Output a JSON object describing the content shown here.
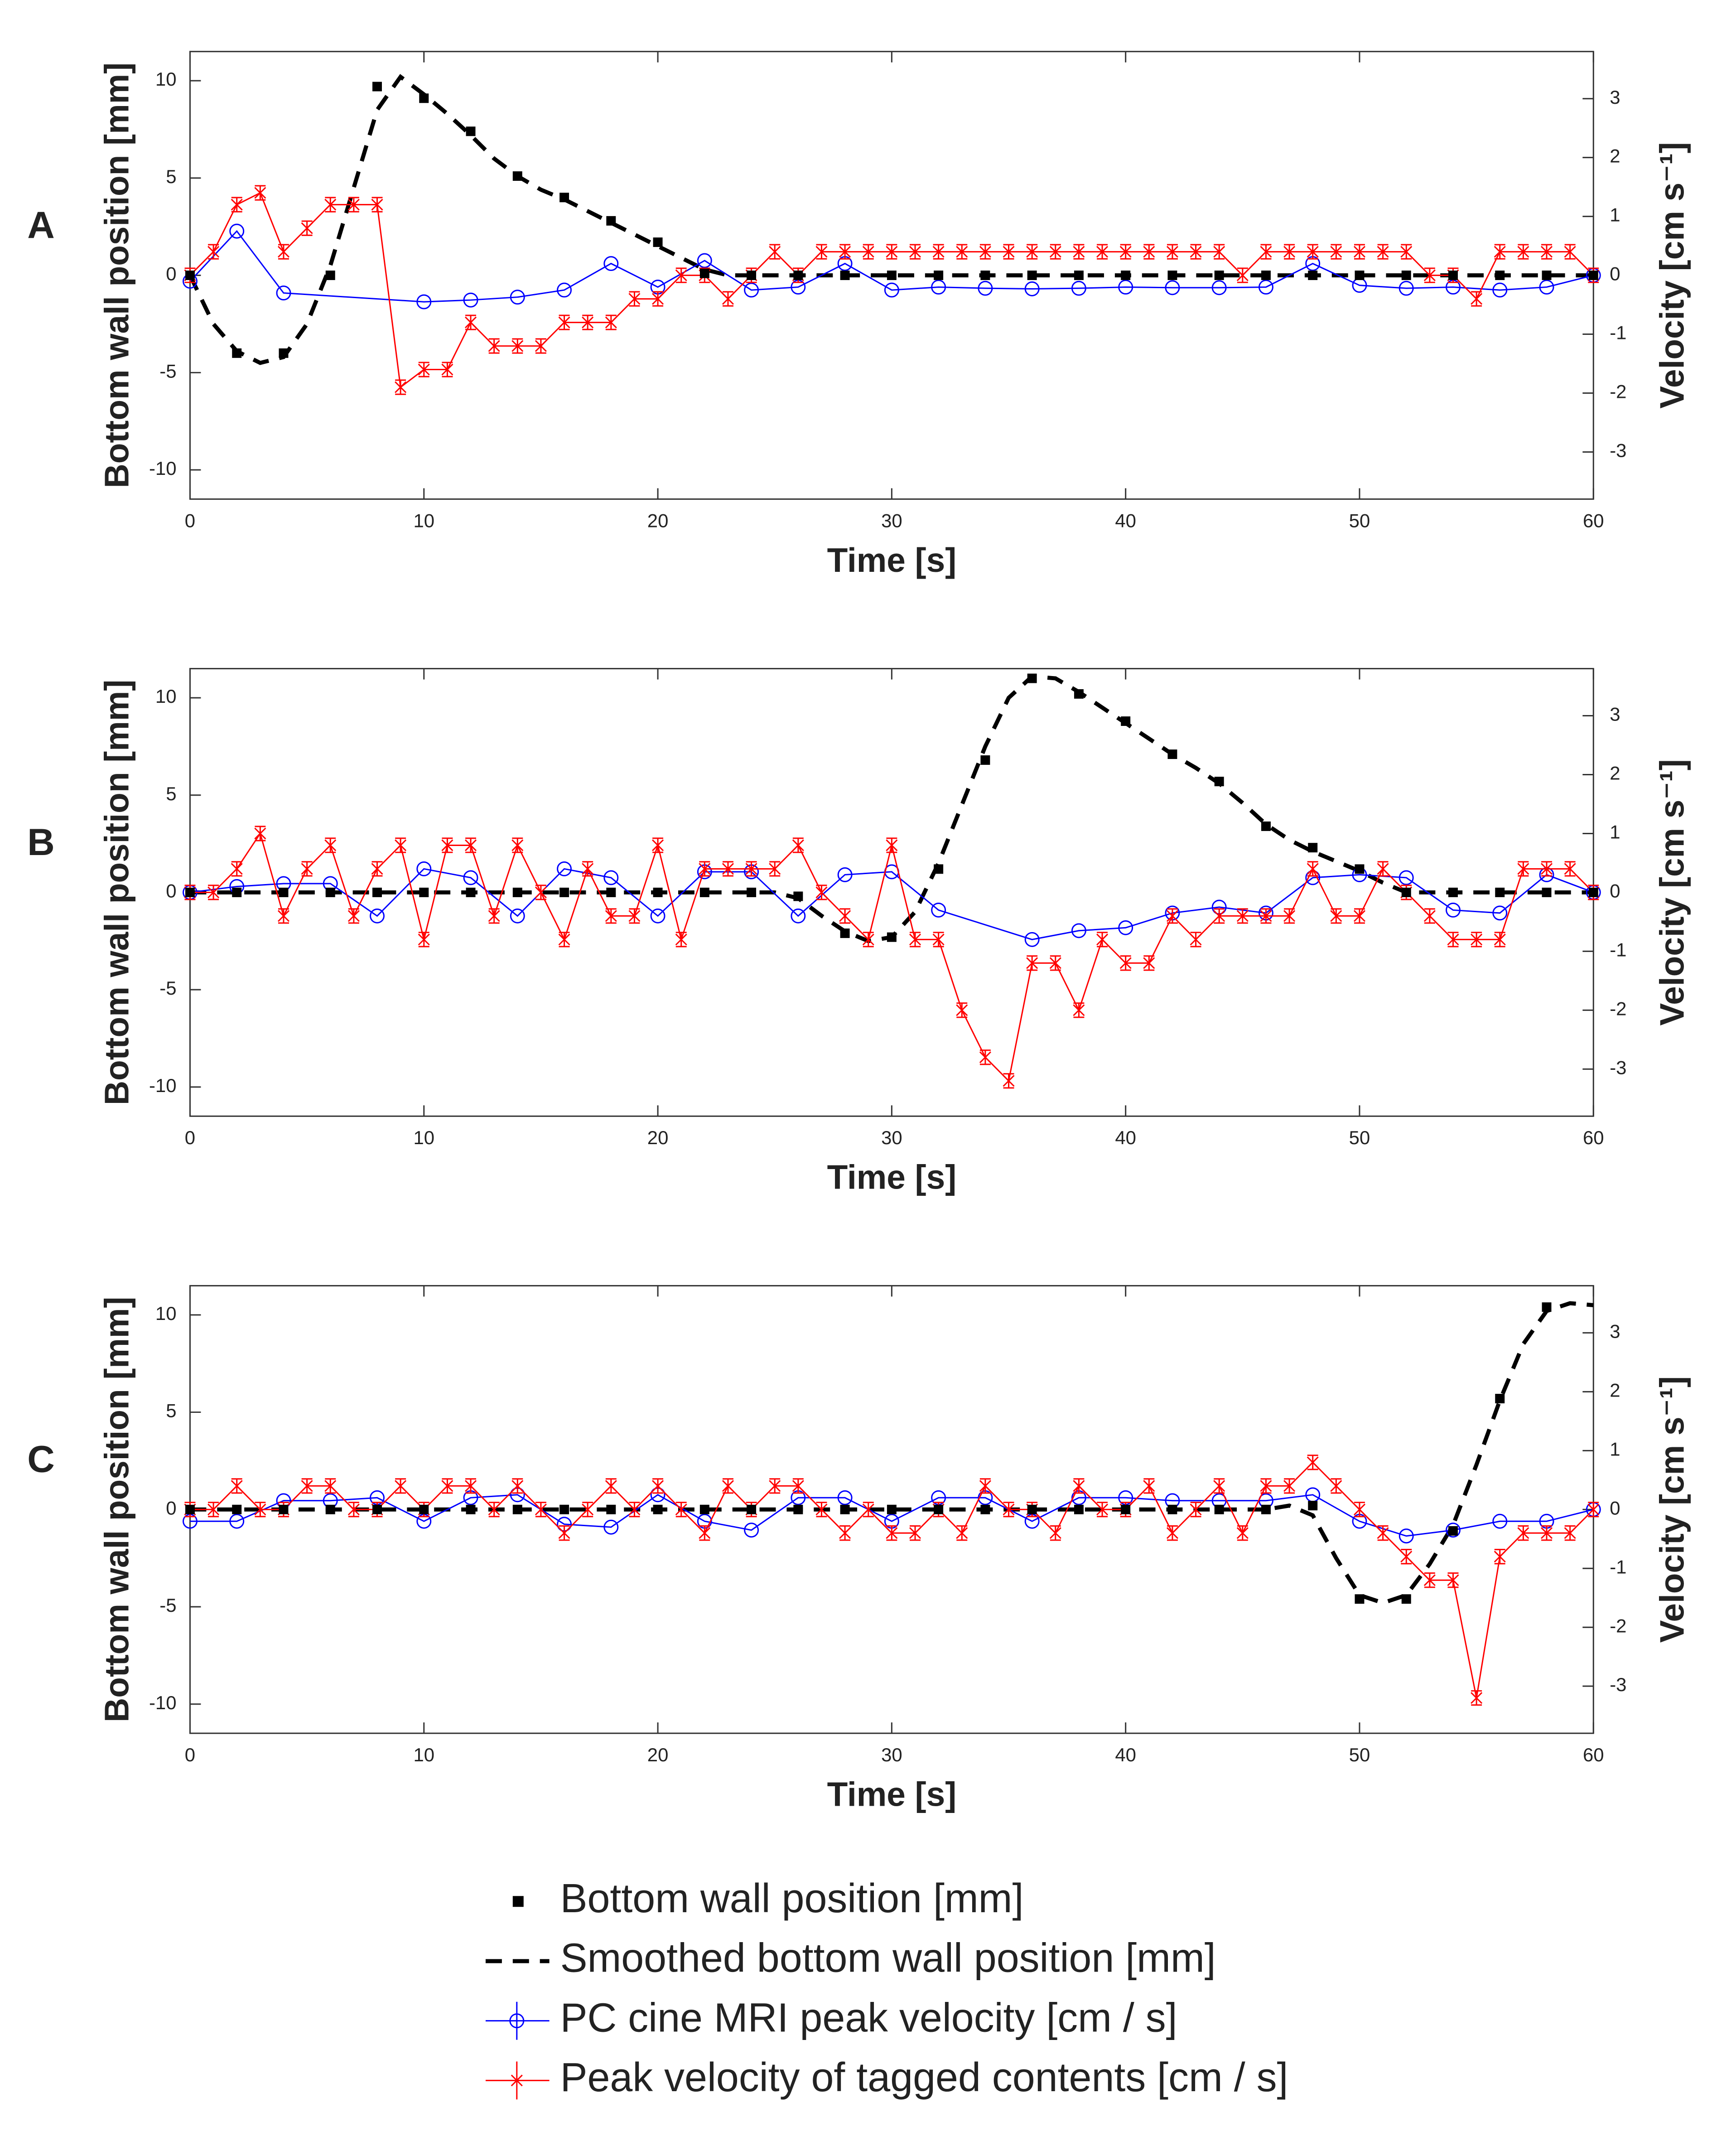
{
  "chart_data": [
    {
      "type": "line",
      "panel": "A",
      "xlabel": "Time [s]",
      "ylabel": "Bottom wall position [mm]",
      "y2label": "Velocity [cm s⁻¹]",
      "xlim": [
        0,
        60
      ],
      "xticks": [
        0,
        10,
        20,
        30,
        40,
        50,
        60
      ],
      "ylim": [
        -11.5,
        11.5
      ],
      "yticks": [
        -10,
        -5,
        0,
        5,
        10
      ],
      "y2lim": [
        -3.8,
        3.8
      ],
      "y2ticks": [
        -3,
        -2,
        -1,
        0,
        1,
        2,
        3
      ],
      "series": [
        {
          "name": "Bottom wall position [mm]",
          "color": "#000000",
          "style": "markers",
          "x": [
            0,
            2,
            4,
            6,
            8,
            10,
            12,
            14,
            16,
            18,
            20,
            22,
            24,
            26,
            28,
            30,
            32,
            34,
            36,
            38,
            40,
            42,
            44,
            46,
            48,
            50,
            52,
            54,
            56,
            58,
            60
          ],
          "values": [
            0,
            -4,
            -4,
            0,
            9.7,
            9.1,
            7.4,
            5.1,
            4.0,
            2.8,
            1.7,
            0.1,
            0,
            0,
            0,
            0,
            0,
            0,
            0,
            0,
            0,
            0,
            0,
            0,
            0,
            0,
            0,
            0,
            0,
            0,
            0
          ]
        },
        {
          "name": "Smoothed bottom wall position [mm]",
          "color": "#000000",
          "style": "dashed",
          "x": [
            0,
            1,
            2,
            3,
            4,
            5,
            6,
            7,
            8,
            9,
            10,
            11,
            12,
            13,
            14,
            15,
            16,
            17,
            18,
            19,
            20,
            21,
            22,
            23,
            24,
            30,
            40,
            50,
            60
          ],
          "values": [
            0,
            -2.5,
            -3.9,
            -4.5,
            -4.2,
            -2.5,
            0.5,
            4.5,
            8.5,
            10.2,
            9.3,
            8.3,
            7.2,
            6.0,
            5.1,
            4.4,
            3.9,
            3.3,
            2.7,
            2.1,
            1.5,
            0.9,
            0.3,
            0,
            0,
            0,
            0,
            0,
            0
          ]
        },
        {
          "name": "PC cine MRI peak velocity [cm / s]",
          "color": "#0000ff",
          "style": "circles",
          "axis": "y2",
          "x": [
            0,
            2,
            4,
            10,
            12,
            14,
            16,
            18,
            20,
            22,
            24,
            26,
            28,
            30,
            32,
            34,
            36,
            38,
            40,
            42,
            44,
            46,
            48,
            50,
            52,
            54,
            56,
            58,
            60
          ],
          "values": [
            -0.1,
            0.75,
            -0.3,
            -0.45,
            -0.42,
            -0.37,
            -0.25,
            0.2,
            -0.2,
            0.25,
            -0.25,
            -0.2,
            0.2,
            -0.25,
            -0.2,
            -0.22,
            -0.23,
            -0.22,
            -0.2,
            -0.21,
            -0.21,
            -0.2,
            0.2,
            -0.17,
            -0.22,
            -0.2,
            -0.25,
            -0.2,
            0
          ]
        },
        {
          "name": "Peak velocity of tagged contents [cm / s]",
          "color": "#ff0000",
          "style": "crosses",
          "axis": "y2",
          "error": 0.12,
          "x": [
            0,
            1,
            2,
            3,
            4,
            5,
            6,
            7,
            8,
            9,
            10,
            11,
            12,
            13,
            14,
            15,
            16,
            17,
            18,
            19,
            20,
            21,
            22,
            23,
            24,
            25,
            26,
            27,
            28,
            29,
            30,
            31,
            32,
            33,
            34,
            35,
            36,
            37,
            38,
            39,
            40,
            41,
            42,
            43,
            44,
            45,
            46,
            47,
            48,
            49,
            50,
            51,
            52,
            53,
            54,
            55,
            56,
            57,
            58,
            59,
            60
          ],
          "values": [
            0,
            0.4,
            1.2,
            1.4,
            0.4,
            0.8,
            1.2,
            1.2,
            1.2,
            -1.9,
            -1.6,
            -1.6,
            -0.8,
            -1.2,
            -1.2,
            -1.2,
            -0.8,
            -0.8,
            -0.8,
            -0.4,
            -0.4,
            0,
            0,
            -0.4,
            0,
            0.4,
            0,
            0.4,
            0.4,
            0.4,
            0.4,
            0.4,
            0.4,
            0.4,
            0.4,
            0.4,
            0.4,
            0.4,
            0.4,
            0.4,
            0.4,
            0.4,
            0.4,
            0.4,
            0.4,
            0,
            0.4,
            0.4,
            0.4,
            0.4,
            0.4,
            0.4,
            0.4,
            0,
            0,
            -0.4,
            0.4,
            0.4,
            0.4,
            0.4,
            0
          ]
        }
      ]
    },
    {
      "type": "line",
      "panel": "B",
      "xlabel": "Time [s]",
      "ylabel": "Bottom wall position [mm]",
      "y2label": "Velocity [cm s⁻¹]",
      "xlim": [
        0,
        60
      ],
      "xticks": [
        0,
        10,
        20,
        30,
        40,
        50,
        60
      ],
      "ylim": [
        -11.5,
        11.5
      ],
      "yticks": [
        -10,
        -5,
        0,
        5,
        10
      ],
      "y2lim": [
        -3.8,
        3.8
      ],
      "y2ticks": [
        -3,
        -2,
        -1,
        0,
        1,
        2,
        3
      ],
      "series": [
        {
          "color": "#000000",
          "style": "markers",
          "x": [
            0,
            2,
            4,
            6,
            8,
            10,
            12,
            14,
            16,
            18,
            20,
            22,
            24,
            26,
            28,
            30,
            32,
            34,
            36,
            38,
            40,
            42,
            44,
            46,
            48,
            50,
            52,
            54,
            56,
            58,
            60
          ],
          "values": [
            0,
            0,
            0,
            0,
            0,
            0,
            0,
            0,
            0,
            0,
            0,
            0,
            0,
            -0.2,
            -2.1,
            -2.3,
            1.2,
            6.8,
            11,
            10.2,
            8.8,
            7.1,
            5.7,
            3.4,
            2.3,
            1.2,
            0,
            0,
            0,
            0,
            0
          ]
        },
        {
          "color": "#000000",
          "style": "dashed",
          "x": [
            0,
            10,
            20,
            25,
            26,
            27,
            28,
            29,
            30,
            31,
            32,
            33,
            34,
            35,
            36,
            37,
            38,
            39,
            40,
            41,
            42,
            43,
            44,
            45,
            46,
            47,
            48,
            49,
            50,
            51,
            52,
            60
          ],
          "values": [
            0,
            0,
            0,
            0,
            -0.3,
            -1.2,
            -2.0,
            -2.5,
            -2.3,
            -1.0,
            1.5,
            4.5,
            7.5,
            10,
            11.1,
            11,
            10.3,
            9.5,
            8.7,
            7.9,
            7.1,
            6.4,
            5.6,
            4.6,
            3.5,
            2.7,
            2.1,
            1.6,
            1.1,
            0.5,
            0,
            0
          ]
        },
        {
          "color": "#0000ff",
          "style": "circles",
          "axis": "y2",
          "x": [
            0,
            2,
            4,
            6,
            8,
            10,
            12,
            14,
            16,
            18,
            20,
            22,
            24,
            26,
            28,
            30,
            32,
            36,
            38,
            40,
            42,
            44,
            46,
            48,
            50,
            52,
            54,
            56,
            58,
            60
          ],
          "values": [
            0,
            0.1,
            0.15,
            0.15,
            -0.4,
            0.4,
            0.25,
            -0.4,
            0.4,
            0.25,
            -0.4,
            0.35,
            0.35,
            -0.4,
            0.3,
            0.35,
            -0.3,
            -0.8,
            -0.65,
            -0.6,
            -0.35,
            -0.25,
            -0.35,
            0.25,
            0.3,
            0.25,
            -0.3,
            -0.35,
            0.3,
            0
          ]
        },
        {
          "color": "#ff0000",
          "style": "crosses",
          "axis": "y2",
          "error": 0.12,
          "x": [
            0,
            1,
            2,
            3,
            4,
            5,
            6,
            7,
            8,
            9,
            10,
            11,
            12,
            13,
            14,
            15,
            16,
            17,
            18,
            19,
            20,
            21,
            22,
            23,
            24,
            25,
            26,
            27,
            28,
            29,
            30,
            31,
            32,
            33,
            34,
            35,
            36,
            37,
            38,
            39,
            40,
            41,
            42,
            43,
            44,
            45,
            46,
            47,
            48,
            49,
            50,
            51,
            52,
            53,
            54,
            55,
            56,
            57,
            58,
            59,
            60
          ],
          "values": [
            0,
            0,
            0.4,
            1.0,
            -0.4,
            0.4,
            0.8,
            -0.4,
            0.4,
            0.8,
            -0.8,
            0.8,
            0.8,
            -0.4,
            0.8,
            0,
            -0.8,
            0.4,
            -0.4,
            -0.4,
            0.8,
            -0.8,
            0.4,
            0.4,
            0.4,
            0.4,
            0.8,
            0,
            -0.4,
            -0.8,
            0.8,
            -0.8,
            -0.8,
            -2.0,
            -2.8,
            -3.2,
            -1.2,
            -1.2,
            -2.0,
            -0.8,
            -1.2,
            -1.2,
            -0.4,
            -0.8,
            -0.4,
            -0.4,
            -0.4,
            -0.4,
            0.4,
            -0.4,
            -0.4,
            0.4,
            0,
            -0.4,
            -0.8,
            -0.8,
            -0.8,
            0.4,
            0.4,
            0.4,
            0
          ]
        }
      ]
    },
    {
      "type": "line",
      "panel": "C",
      "xlabel": "Time [s]",
      "ylabel": "Bottom wall position [mm]",
      "y2label": "Velocity [cm s⁻¹]",
      "xlim": [
        0,
        60
      ],
      "xticks": [
        0,
        10,
        20,
        30,
        40,
        50,
        60
      ],
      "ylim": [
        -11.5,
        11.5
      ],
      "yticks": [
        -10,
        -5,
        0,
        5,
        10
      ],
      "y2lim": [
        -3.8,
        3.8
      ],
      "y2ticks": [
        -3,
        -2,
        -1,
        0,
        1,
        2,
        3
      ],
      "series": [
        {
          "color": "#000000",
          "style": "markers",
          "x": [
            0,
            2,
            4,
            6,
            8,
            10,
            12,
            14,
            16,
            18,
            20,
            22,
            24,
            26,
            28,
            30,
            32,
            34,
            36,
            38,
            40,
            42,
            44,
            46,
            48,
            50,
            52,
            54,
            56,
            58
          ],
          "values": [
            0,
            0,
            0,
            0,
            0,
            0,
            0,
            0,
            0,
            0,
            0,
            0,
            0,
            0,
            0,
            0,
            0,
            0,
            0,
            0,
            0,
            0,
            0,
            0,
            0.2,
            -4.6,
            -4.6,
            -1.1,
            5.7,
            10.4
          ]
        },
        {
          "color": "#000000",
          "style": "dashed",
          "x": [
            0,
            10,
            20,
            30,
            40,
            46,
            47,
            48,
            49,
            50,
            51,
            52,
            53,
            54,
            55,
            56,
            57,
            58,
            59,
            60
          ],
          "values": [
            0,
            0,
            0,
            0,
            0,
            0,
            0.2,
            -0.3,
            -2.5,
            -4.4,
            -4.8,
            -4.4,
            -2.8,
            -0.8,
            2.3,
            5.6,
            8.5,
            10.2,
            10.6,
            10.5
          ]
        },
        {
          "color": "#0000ff",
          "style": "circles",
          "axis": "y2",
          "x": [
            0,
            2,
            4,
            6,
            8,
            10,
            12,
            14,
            16,
            18,
            20,
            22,
            24,
            26,
            28,
            30,
            32,
            34,
            36,
            38,
            40,
            42,
            44,
            46,
            48,
            50,
            52,
            54,
            56,
            58,
            60
          ],
          "values": [
            -0.2,
            -0.2,
            0.15,
            0.15,
            0.2,
            -0.2,
            0.2,
            0.25,
            -0.25,
            -0.3,
            0.25,
            -0.2,
            -0.35,
            0.2,
            0.2,
            -0.2,
            0.2,
            0.2,
            -0.2,
            0.2,
            0.2,
            0.15,
            0.15,
            0.15,
            0.25,
            -0.2,
            -0.45,
            -0.35,
            -0.2,
            -0.2,
            0
          ]
        },
        {
          "color": "#ff0000",
          "style": "crosses",
          "axis": "y2",
          "error": 0.12,
          "x": [
            0,
            1,
            2,
            3,
            4,
            5,
            6,
            7,
            8,
            9,
            10,
            11,
            12,
            13,
            14,
            15,
            16,
            17,
            18,
            19,
            20,
            21,
            22,
            23,
            24,
            25,
            26,
            27,
            28,
            29,
            30,
            31,
            32,
            33,
            34,
            35,
            36,
            37,
            38,
            39,
            40,
            41,
            42,
            43,
            44,
            45,
            46,
            47,
            48,
            49,
            50,
            51,
            52,
            53,
            54,
            55,
            56,
            57,
            58,
            59,
            60
          ],
          "values": [
            0,
            0,
            0.4,
            0,
            0,
            0.4,
            0.4,
            0,
            0,
            0.4,
            0,
            0.4,
            0.4,
            0,
            0.4,
            0,
            -0.4,
            0,
            0.4,
            0,
            0.4,
            0,
            -0.4,
            0.4,
            0,
            0.4,
            0.4,
            0,
            -0.4,
            0,
            -0.4,
            -0.4,
            0,
            -0.4,
            0.4,
            0,
            0,
            -0.4,
            0.4,
            0,
            0,
            0.4,
            -0.4,
            0,
            0.4,
            -0.4,
            0.4,
            0.4,
            0.8,
            0.4,
            0,
            -0.4,
            -0.8,
            -1.2,
            -1.2,
            -3.2,
            -0.8,
            -0.4,
            -0.4,
            -0.4,
            0
          ]
        }
      ]
    }
  ]
}
